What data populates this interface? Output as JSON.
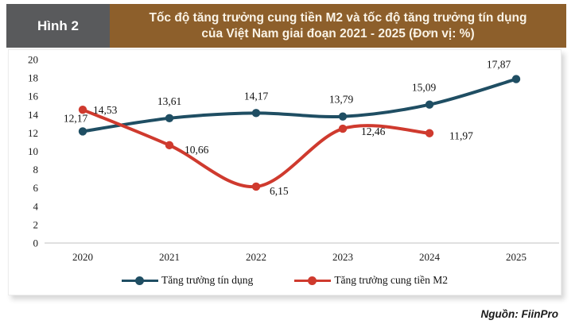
{
  "header": {
    "figure_label": "Hình 2",
    "title_line1": "Tốc độ tăng trưởng cung tiền M2 và tốc độ tăng trưởng tín dụng",
    "title_line2": "của Việt Nam giai đoạn 2021 - 2025 (Đơn vị: %)",
    "label_bg": "#595a5c",
    "title_bg": "#8d5f2b"
  },
  "chart_data": {
    "type": "line",
    "categories": [
      "2020",
      "2021",
      "2022",
      "2023",
      "2024",
      "2025"
    ],
    "ylim": [
      0,
      20
    ],
    "ytick_step": 2,
    "grid": false,
    "legend_position": "bottom",
    "unit": "%",
    "series": [
      {
        "name": "Tăng trưởng tín dụng",
        "color": "#1f4e63",
        "values": [
          12.17,
          13.61,
          14.17,
          13.79,
          15.09,
          17.87
        ],
        "labels": [
          "12,17",
          "13,61",
          "14,17",
          "13,79",
          "15,09",
          "17,87"
        ]
      },
      {
        "name": "Tăng trưởng cung tiền M2",
        "color": "#cf3a2e",
        "values": [
          14.53,
          10.66,
          6.15,
          12.46,
          11.97,
          null
        ],
        "labels": [
          "14,53",
          "10,66",
          "6,15",
          "12,46",
          "11,97",
          ""
        ]
      }
    ]
  },
  "source": "Nguồn: FiinPro"
}
